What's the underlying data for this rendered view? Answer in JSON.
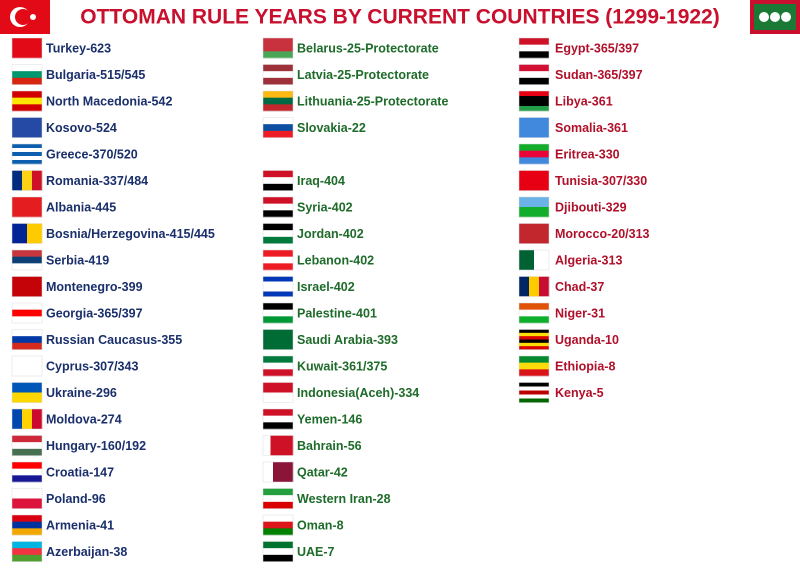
{
  "title": "OTTOMAN RULE YEARS BY CURRENT COUNTRIES (1299-1922)",
  "columns": [
    {
      "items": [
        "Turkey-623",
        "Bulgaria-515/545",
        "North Macedonia-542",
        "Kosovo-524",
        "Greece-370/520",
        "Romania-337/484",
        "Albania-445",
        "Bosnia/Herzegovina-415/445",
        "Serbia-419",
        "Montenegro-399",
        "Georgia-365/397",
        "Russian Caucasus-355",
        "Cyprus-307/343",
        "Ukraine-296",
        "Moldova-274",
        "Hungary-160/192",
        "Croatia-147",
        "Poland-96",
        "Armenia-41",
        "Azerbaijan-38"
      ]
    },
    {
      "items": [
        "Belarus-25-Protectorate",
        "Latvia-25-Protectorate",
        "Lithuania-25-Protectorate",
        "Slovakia-22",
        "Iraq-404",
        "Syria-402",
        "Jordan-402",
        "Lebanon-402",
        "Israel-402",
        "Palestine-401",
        "Saudi Arabia-393",
        "Kuwait-361/375",
        "Indonesia(Aceh)-334",
        "Yemen-146",
        "Bahrain-56",
        "Qatar-42",
        "Western Iran-28",
        "Oman-8",
        "UAE-7"
      ]
    },
    {
      "items": [
        "Egypt-365/397",
        "Sudan-365/397",
        "Libya-361",
        "Somalia-361",
        "Eritrea-330",
        "Tunisia-307/330",
        "Djibouti-329",
        "Morocco-20/313",
        "Algeria-313",
        "Chad-37",
        "Niger-31",
        "Uganda-10",
        "Ethiopia-8",
        "Kenya-5"
      ]
    }
  ]
}
